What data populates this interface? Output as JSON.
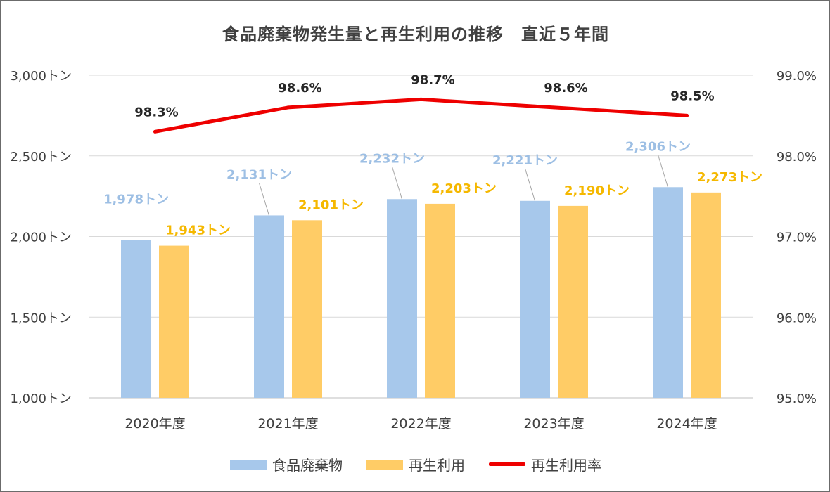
{
  "colors": {
    "waste": "#a7c8eb",
    "recycle": "#ffcc66",
    "rate": "#ee0000",
    "waste_label": "#9dbfe4",
    "recycle_label": "#f5b800",
    "axis_text": "#404040",
    "grid": "#d9d9d9"
  },
  "chart_data": {
    "type": "bar",
    "title": "食品廃棄物発生量と再生利用の推移　直近５年間",
    "categories": [
      "2020年度",
      "2021年度",
      "2022年度",
      "2023年度",
      "2024年度"
    ],
    "series": [
      {
        "name": "食品廃棄物",
        "kind": "bar",
        "axis": "left",
        "values": [
          1978,
          2131,
          2232,
          2221,
          2306
        ],
        "labels": [
          "1,978トン",
          "2,131トン",
          "2,232トン",
          "2,221トン",
          "2,306トン"
        ]
      },
      {
        "name": "再生利用",
        "kind": "bar",
        "axis": "left",
        "values": [
          1943,
          2101,
          2203,
          2190,
          2273
        ],
        "labels": [
          "1,943トン",
          "2,101トン",
          "2,203トン",
          "2,190トン",
          "2,273トン"
        ]
      },
      {
        "name": "再生利用率",
        "kind": "line",
        "axis": "right",
        "values": [
          98.3,
          98.6,
          98.7,
          98.6,
          98.5
        ],
        "labels": [
          "98.3%",
          "98.6%",
          "98.7%",
          "98.6%",
          "98.5%"
        ]
      }
    ],
    "y_left": {
      "min": 1000,
      "max": 3000,
      "ticks": [
        1000,
        1500,
        2000,
        2500,
        3000
      ],
      "tick_labels": [
        "1,000トン",
        "1,500トン",
        "2,000トン",
        "2,500トン",
        "3,000トン"
      ]
    },
    "y_right": {
      "min": 95.0,
      "max": 99.0,
      "ticks": [
        95,
        96,
        97,
        98,
        99
      ],
      "tick_labels": [
        "95.0%",
        "96.0%",
        "97.0%",
        "98.0%",
        "99.0%"
      ]
    },
    "grid": true,
    "legend_position": "bottom"
  }
}
